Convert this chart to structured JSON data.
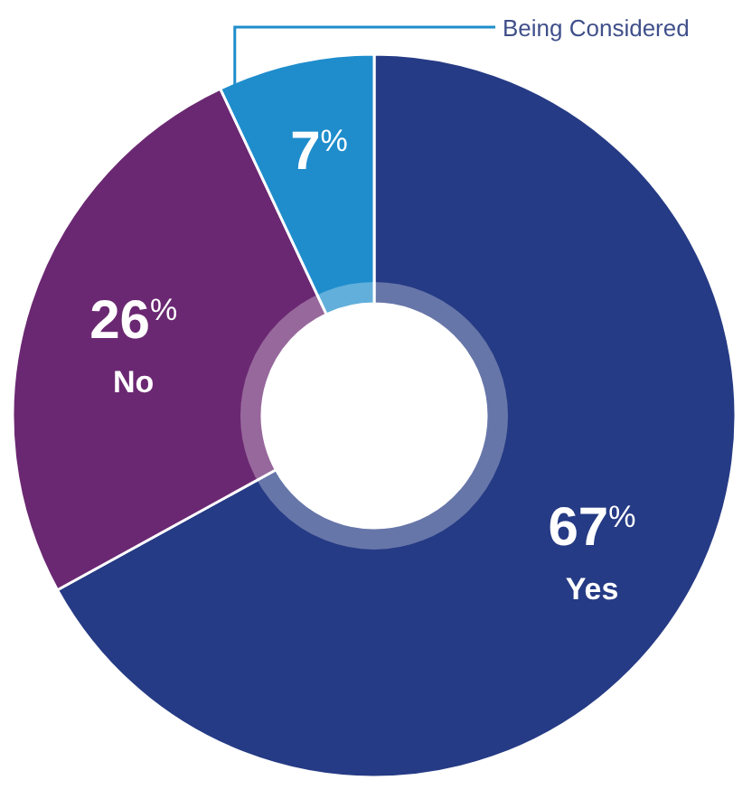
{
  "chart_data": {
    "type": "donut",
    "categories": [
      "Yes",
      "No",
      "Being Considered"
    ],
    "values": [
      67,
      26,
      7
    ],
    "colors": [
      "#263b85",
      "#6b2872",
      "#1f8dcc"
    ],
    "value_labels": [
      "67$^{%}$",
      "26$^{%}$",
      "7$^{%}$"
    ]
  }
}
